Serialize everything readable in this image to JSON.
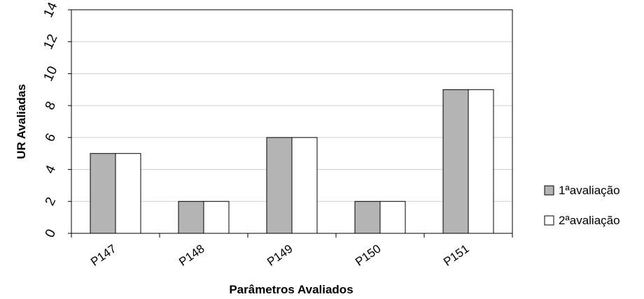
{
  "chart_data": {
    "type": "bar",
    "title": "",
    "xlabel": "Parâmetros Avaliados",
    "ylabel": "UR Avaliadas",
    "categories": [
      "P147",
      "P148",
      "P149",
      "P150",
      "P151"
    ],
    "series": [
      {
        "name": "1ªavaliação",
        "values": [
          5,
          2,
          6,
          2,
          9
        ],
        "color": "#b4b4b4"
      },
      {
        "name": "2ªavaliação",
        "values": [
          5,
          2,
          6,
          2,
          9
        ],
        "color": "#ffffff"
      }
    ],
    "ylim": [
      0,
      14
    ],
    "yticks": [
      "0",
      "2",
      "4",
      "6",
      "8",
      "10",
      "12",
      "14"
    ],
    "grid": true,
    "legend_position": "right"
  }
}
